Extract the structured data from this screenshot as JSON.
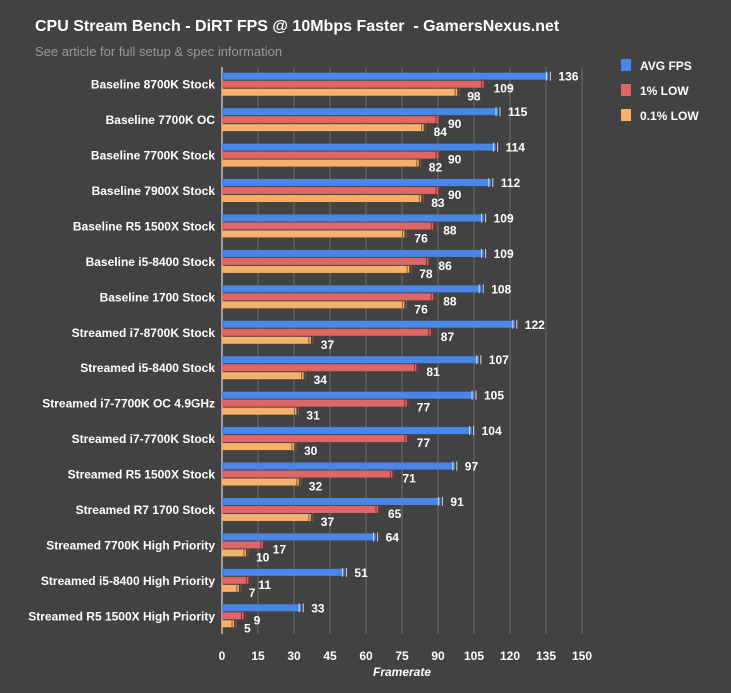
{
  "chart_data": {
    "type": "bar",
    "orientation": "horizontal",
    "title": "CPU Stream Bench - DiRT FPS @ 10Mbps Faster  - GamersNexus.net",
    "subtitle": "See article for full setup & spec information",
    "xlabel": "Framerate",
    "xlim": [
      0,
      150
    ],
    "xticks": [
      0,
      15,
      30,
      45,
      60,
      75,
      90,
      105,
      120,
      135,
      150
    ],
    "grid": true,
    "legend_placement": "top-right",
    "categories": [
      "Baseline 8700K Stock",
      "Baseline 7700K OC",
      "Baseline 7700K Stock",
      "Baseline 7900X Stock",
      "Baseline R5 1500X Stock",
      "Baseline i5-8400 Stock",
      "Baseline 1700 Stock",
      "Streamed i7-8700K Stock",
      "Streamed i5-8400 Stock",
      "Streamed i7-7700K OC 4.9GHz",
      "Streamed i7-7700K Stock",
      "Streamed R5 1500X Stock",
      "Streamed R7 1700 Stock",
      "Streamed 7700K High Priority",
      "Streamed i5-8400 High Priority",
      "Streamed R5 1500X High Priority"
    ],
    "series": [
      {
        "name": "AVG FPS",
        "color": "#4a86e8",
        "values": [
          136,
          115,
          114,
          112,
          109,
          109,
          108,
          122,
          107,
          105,
          104,
          97,
          91,
          64,
          51,
          33
        ]
      },
      {
        "name": "1% LOW",
        "color": "#e06666",
        "values": [
          109,
          90,
          90,
          90,
          88,
          86,
          88,
          87,
          81,
          77,
          77,
          71,
          65,
          17,
          11,
          9
        ]
      },
      {
        "name": "0.1% LOW",
        "color": "#f6b26b",
        "values": [
          98,
          84,
          82,
          83,
          76,
          78,
          76,
          37,
          34,
          31,
          30,
          32,
          37,
          10,
          7,
          5
        ]
      }
    ]
  }
}
